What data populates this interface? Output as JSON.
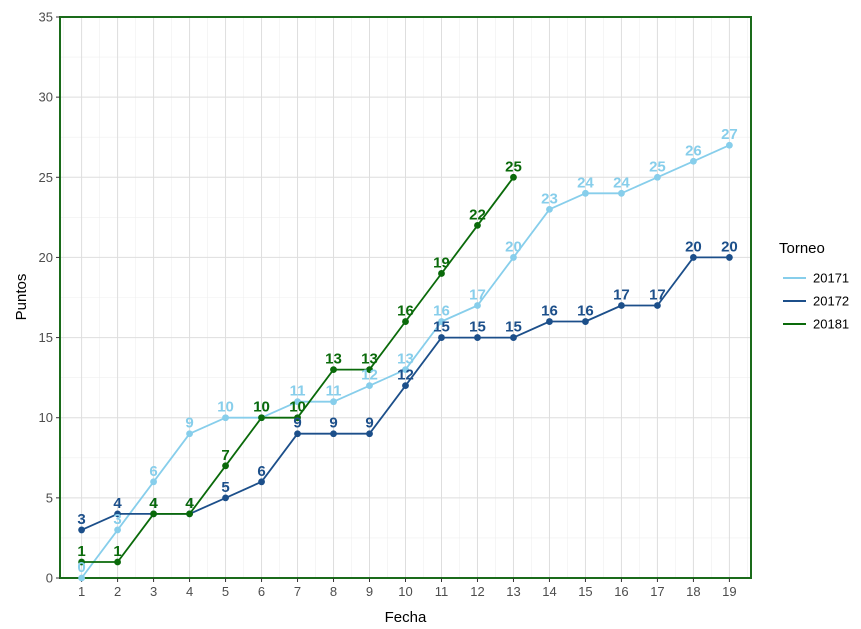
{
  "chart_data": {
    "type": "line",
    "title": "",
    "xlabel": "Fecha",
    "ylabel": "Puntos",
    "x": [
      1,
      2,
      3,
      4,
      5,
      6,
      7,
      8,
      9,
      10,
      11,
      12,
      13,
      14,
      15,
      16,
      17,
      18,
      19
    ],
    "xlim": [
      0.4,
      19.6
    ],
    "ylim": [
      0,
      35
    ],
    "yticks": [
      0,
      5,
      10,
      15,
      20,
      25,
      30,
      35
    ],
    "grid": true,
    "point_labels": true,
    "legend": {
      "title": "Torneo",
      "position": "right"
    },
    "frame_color": "#1a6b1a",
    "series": [
      {
        "name": "20171",
        "color": "#87ceeb",
        "x": [
          1,
          2,
          3,
          4,
          5,
          6,
          7,
          8,
          9,
          10,
          11,
          12,
          13,
          14,
          15,
          16,
          17,
          18,
          19
        ],
        "values": [
          0,
          3,
          6,
          9,
          10,
          10,
          11,
          11,
          12,
          13,
          16,
          17,
          20,
          23,
          24,
          24,
          25,
          26,
          27
        ]
      },
      {
        "name": "20172",
        "color": "#1c4f8a",
        "x": [
          1,
          2,
          3,
          4,
          5,
          6,
          7,
          8,
          9,
          10,
          11,
          12,
          13,
          14,
          15,
          16,
          17,
          18,
          19
        ],
        "values": [
          3,
          4,
          4,
          4,
          5,
          6,
          9,
          9,
          9,
          12,
          15,
          15,
          15,
          16,
          16,
          17,
          17,
          20,
          20
        ]
      },
      {
        "name": "20181",
        "color": "#0a6a0a",
        "x": [
          1,
          2,
          3,
          4,
          5,
          6,
          7,
          8,
          9,
          10,
          11,
          12,
          13
        ],
        "values": [
          1,
          1,
          4,
          4,
          7,
          10,
          10,
          13,
          13,
          16,
          19,
          22,
          25
        ]
      }
    ]
  }
}
